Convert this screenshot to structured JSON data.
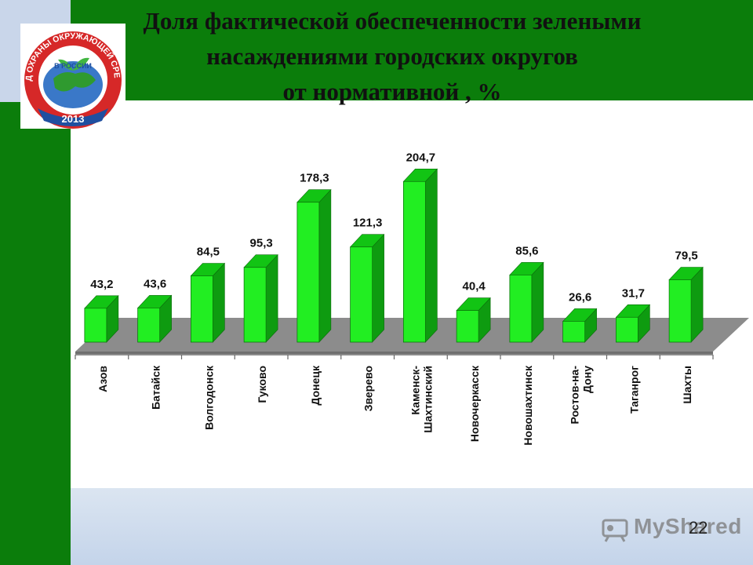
{
  "title_lines": [
    "Доля фактической обеспеченности зелеными",
    "насаждениями городских округов",
    "от нормативной , %"
  ],
  "logo": {
    "text_arc": "ГОД ОХРАНЫ ОКРУЖАЮЩЕЙ СРЕДЫ",
    "text_inner": "В РОССИИ",
    "year": "2013"
  },
  "page_number": "22",
  "watermark_text": "MyShared",
  "colors": {
    "header": "#0b7d0b",
    "bar_front": "#22ee22",
    "floor": "#8c8c8c"
  },
  "chart_data": {
    "type": "bar",
    "categories": [
      "Азов",
      "Батайск",
      "Волгодонск",
      "Гуково",
      "Донецк",
      "Зверево",
      "Каменск-Шахтинский",
      "Новочеркасск",
      "Новошахтинск",
      "Ростов-на-Дону",
      "Таганрог",
      "Шахты"
    ],
    "category_lines": [
      [
        "Азов"
      ],
      [
        "Батайск"
      ],
      [
        "Волгодонск"
      ],
      [
        "Гуково"
      ],
      [
        "Донецк"
      ],
      [
        "Зверево"
      ],
      [
        "Каменск-",
        "Шахтинский"
      ],
      [
        "Новочеркасск"
      ],
      [
        "Новошахтинск"
      ],
      [
        "Ростов-на-",
        "Дону"
      ],
      [
        "Таганрог"
      ],
      [
        "Шахты"
      ]
    ],
    "values": [
      43.2,
      43.6,
      84.5,
      95.3,
      178.3,
      121.3,
      204.7,
      40.4,
      85.6,
      26.6,
      31.7,
      79.5
    ],
    "value_labels": [
      "43,2",
      "43,6",
      "84,5",
      "95,3",
      "178,3",
      "121,3",
      "204,7",
      "40,4",
      "85,6",
      "26,6",
      "31,7",
      "79,5"
    ],
    "title": "Доля фактической обеспеченности зелеными насаждениями городских округов от нормативной , %",
    "xlabel": "",
    "ylabel": "",
    "ylim": [
      0,
      220
    ],
    "grid": false,
    "legend": "none",
    "style": "3d"
  }
}
